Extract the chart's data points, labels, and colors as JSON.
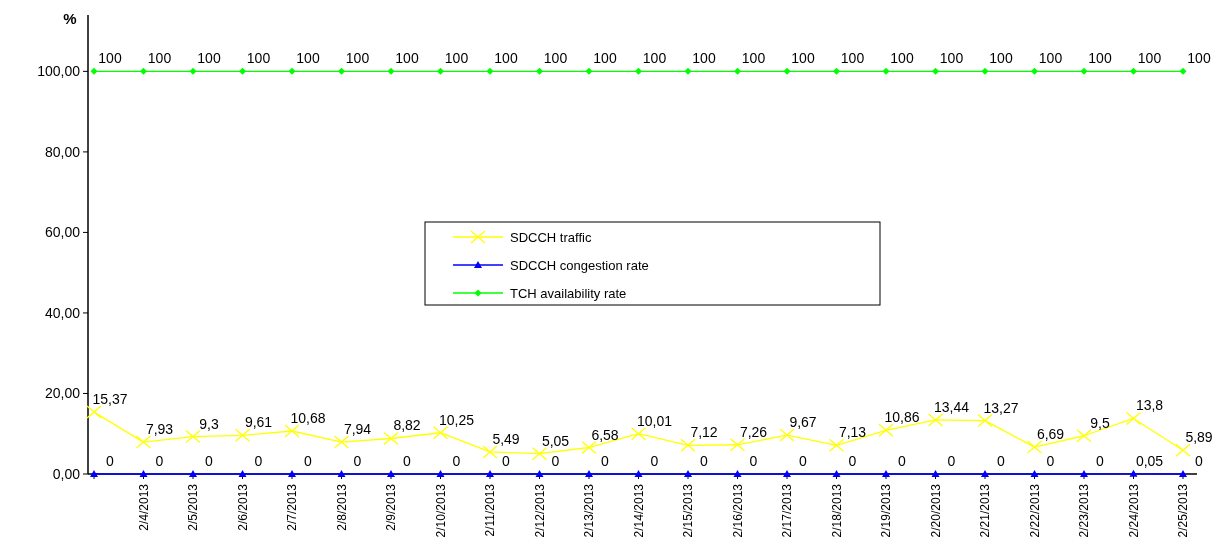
{
  "chart_data": {
    "type": "line",
    "ylabel": "%",
    "categories": [
      null,
      "2/4/2013",
      "2/5/2013",
      "2/6/2013",
      "2/7/2013",
      "2/8/2013",
      "2/9/2013",
      "2/10/2013",
      "2/11/2013",
      "2/12/2013",
      "2/13/2013",
      "2/14/2013",
      "2/15/2013",
      "2/16/2013",
      "2/17/2013",
      "2/18/2013",
      "2/19/2013",
      "2/20/2013",
      "2/21/2013",
      "2/22/2013",
      "2/23/2013",
      "2/24/2013",
      "2/25/2013"
    ],
    "series": [
      {
        "name": "SDCCH traffic",
        "color": "#ffff00",
        "marker": "cross",
        "values": [
          15.37,
          7.93,
          9.3,
          9.61,
          10.68,
          7.94,
          8.82,
          10.25,
          5.49,
          5.05,
          6.58,
          10.01,
          7.12,
          7.26,
          9.67,
          7.13,
          10.86,
          13.44,
          13.27,
          6.69,
          9.5,
          13.8,
          5.89
        ],
        "value_labels": [
          "15,37",
          "7,93",
          "9,3",
          "9,61",
          "10,68",
          "7,94",
          "8,82",
          "10,25",
          "5,49",
          "5,05",
          "6,58",
          "10,01",
          "7,12",
          "7,26",
          "9,67",
          "7,13",
          "10,86",
          "13,44",
          "13,27",
          "6,69",
          "9,5",
          "13,8",
          "5,89"
        ]
      },
      {
        "name": "SDCCH congestion rate",
        "color": "#0000ff",
        "marker": "triangle",
        "values": [
          0,
          0,
          0,
          0,
          0,
          0,
          0,
          0,
          0,
          0,
          0,
          0,
          0,
          0,
          0,
          0,
          0,
          0,
          0,
          0,
          0,
          0.05,
          0
        ],
        "value_labels": [
          "0",
          "0",
          "0",
          "0",
          "0",
          "0",
          "0",
          "0",
          "0",
          "0",
          "0",
          "0",
          "0",
          "0",
          "0",
          "0",
          "0",
          "0",
          "0",
          "0",
          "0",
          "0,05",
          "0"
        ]
      },
      {
        "name": "TCH availability rate",
        "color": "#00ff00",
        "marker": "diamond",
        "values": [
          100,
          100,
          100,
          100,
          100,
          100,
          100,
          100,
          100,
          100,
          100,
          100,
          100,
          100,
          100,
          100,
          100,
          100,
          100,
          100,
          100,
          100,
          100
        ],
        "value_labels": [
          "100",
          "100",
          "100",
          "100",
          "100",
          "100",
          "100",
          "100",
          "100",
          "100",
          "100",
          "100",
          "100",
          "100",
          "100",
          "100",
          "100",
          "100",
          "100",
          "100",
          "100",
          "100",
          "100"
        ]
      }
    ],
    "ylim": [
      0,
      114
    ],
    "yticks": [
      {
        "value": 0,
        "label": "0,00"
      },
      {
        "value": 20,
        "label": "20,00"
      },
      {
        "value": 40,
        "label": "40,00"
      },
      {
        "value": 60,
        "label": "60,00"
      },
      {
        "value": 80,
        "label": "80,00"
      },
      {
        "value": 100,
        "label": "100,00"
      }
    ],
    "legend": "center",
    "grid": false
  }
}
